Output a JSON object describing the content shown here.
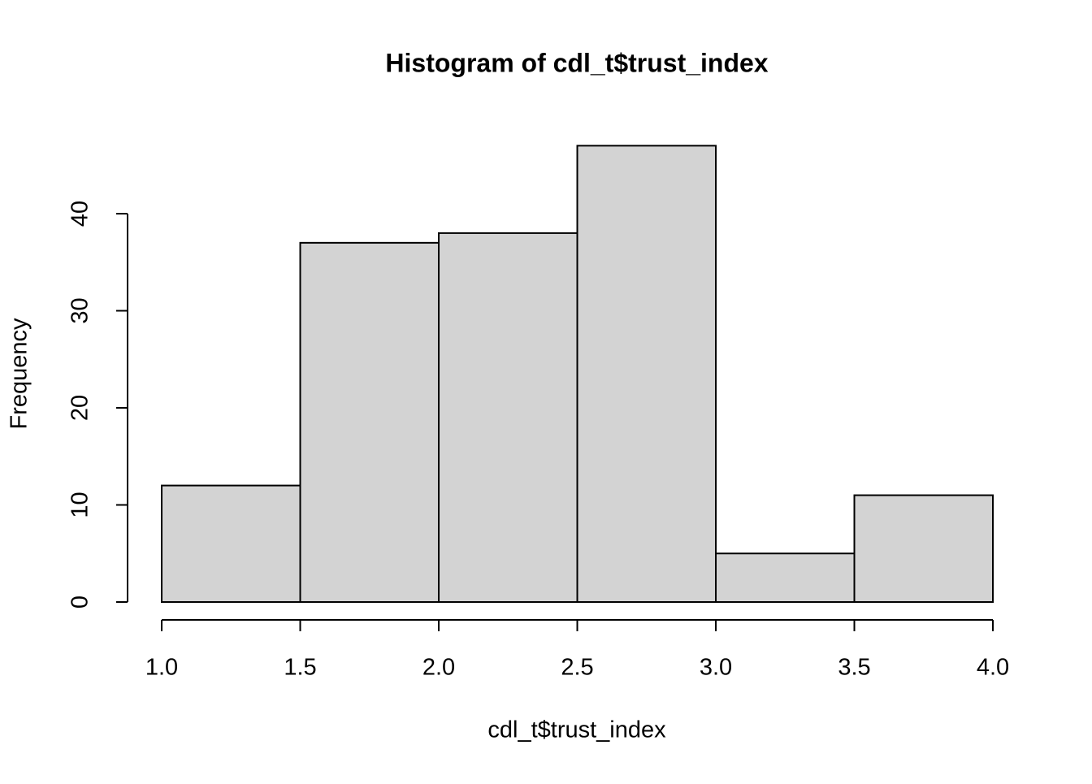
{
  "chart_data": {
    "type": "histogram",
    "title": "Histogram of cdl_t$trust_index",
    "x_label": "cdl_t$trust_index",
    "y_label": "Frequency",
    "bins": [
      1,
      1.5,
      2,
      2.5,
      3,
      3.5,
      4
    ],
    "values": [
      12,
      37,
      38,
      47,
      5,
      11
    ],
    "color": "#d3d3d3",
    "xlim": [
      1,
      4
    ],
    "ylim": [
      0,
      47
    ],
    "xticks": [
      {
        "value": 1,
        "label": "1.0"
      },
      1.5,
      {
        "value": 2,
        "label": "2.0"
      },
      2.5,
      {
        "value": 3,
        "label": "3.0"
      },
      3.5,
      {
        "value": 4,
        "label": "4.0"
      }
    ],
    "yticks": [
      0,
      10,
      20,
      30,
      40
    ],
    "grid": false
  }
}
